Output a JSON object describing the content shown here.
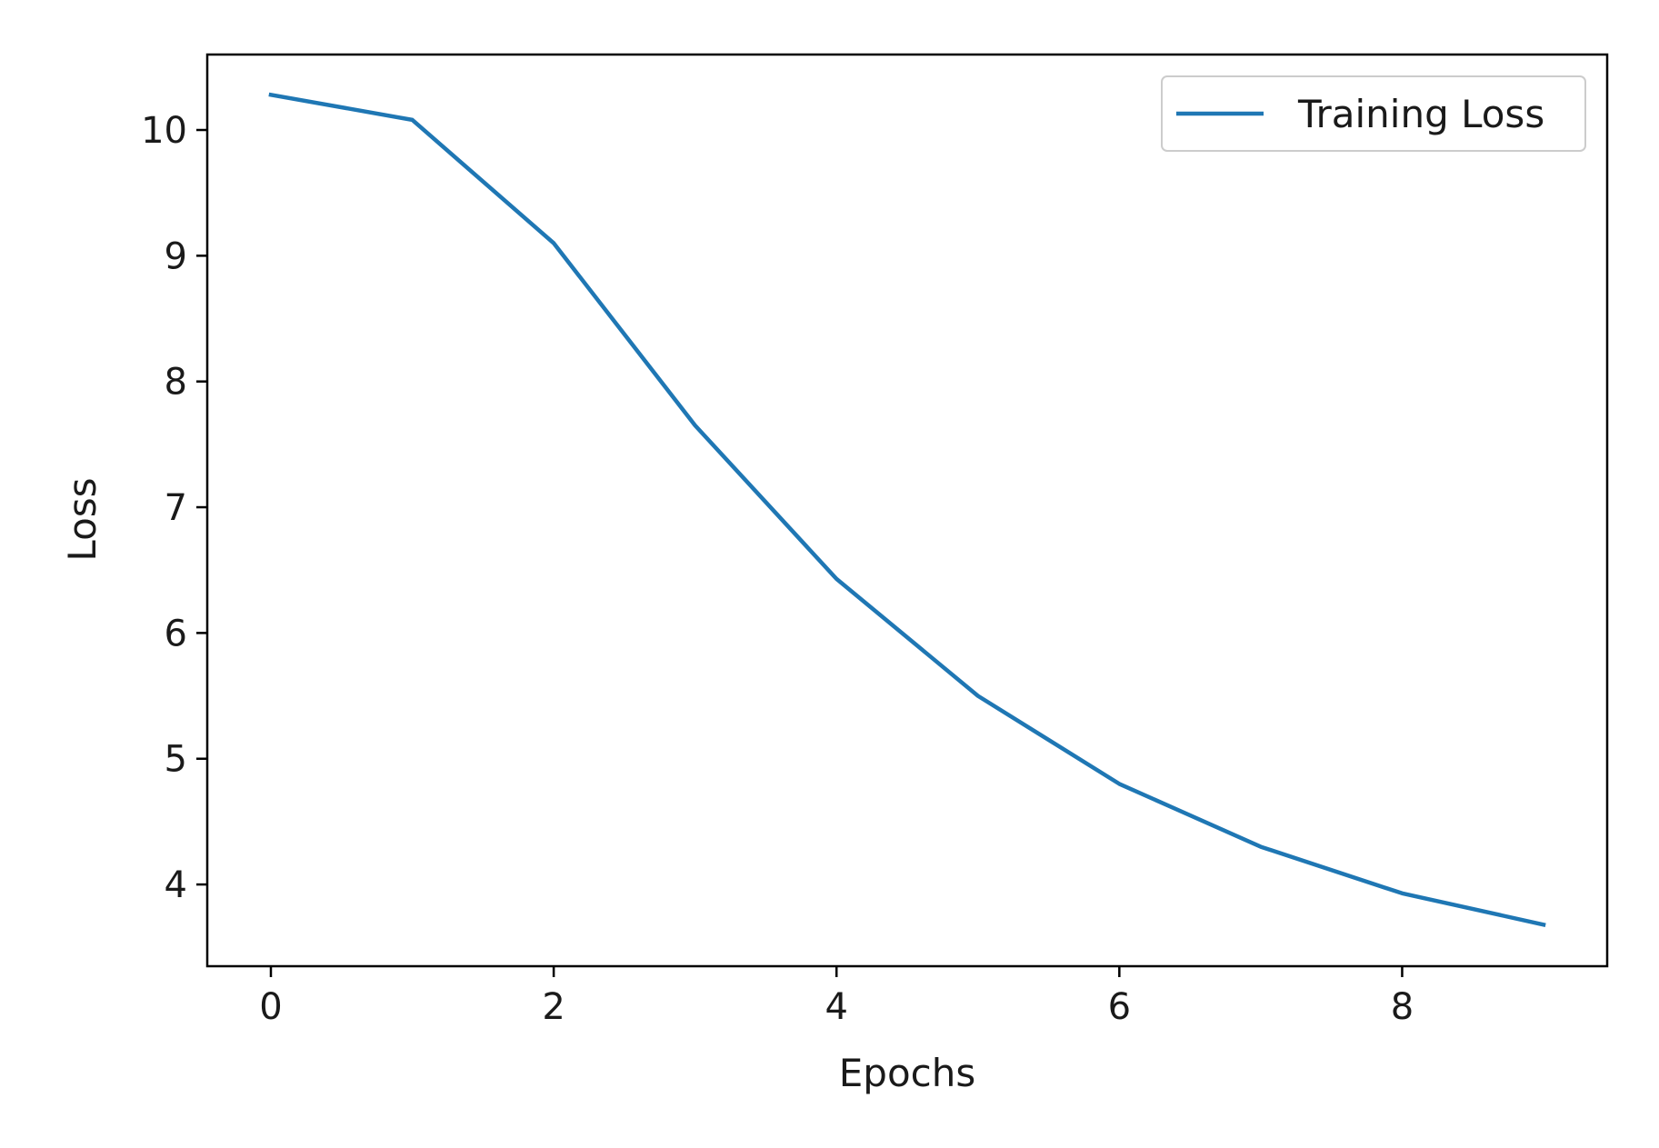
{
  "chart_data": {
    "type": "line",
    "title": "",
    "xlabel": "Epochs",
    "ylabel": "Loss",
    "x": [
      0,
      1,
      2,
      3,
      4,
      5,
      6,
      7,
      8,
      9
    ],
    "series": [
      {
        "name": "Training Loss",
        "color": "#1f77b4",
        "values": [
          10.28,
          10.08,
          9.1,
          7.65,
          6.43,
          5.5,
          4.8,
          4.3,
          3.93,
          3.68
        ]
      }
    ],
    "xlim": [
      -0.45,
      9.45
    ],
    "ylim": [
      3.35,
      10.6
    ],
    "xticks": [
      0,
      2,
      4,
      6,
      8
    ],
    "xtick_labels": [
      "0",
      "2",
      "4",
      "6",
      "8"
    ],
    "yticks": [
      4,
      5,
      6,
      7,
      8,
      9,
      10
    ],
    "ytick_labels": [
      "4",
      "5",
      "6",
      "7",
      "8",
      "9",
      "10"
    ],
    "grid": false,
    "legend_position": "top-right"
  }
}
